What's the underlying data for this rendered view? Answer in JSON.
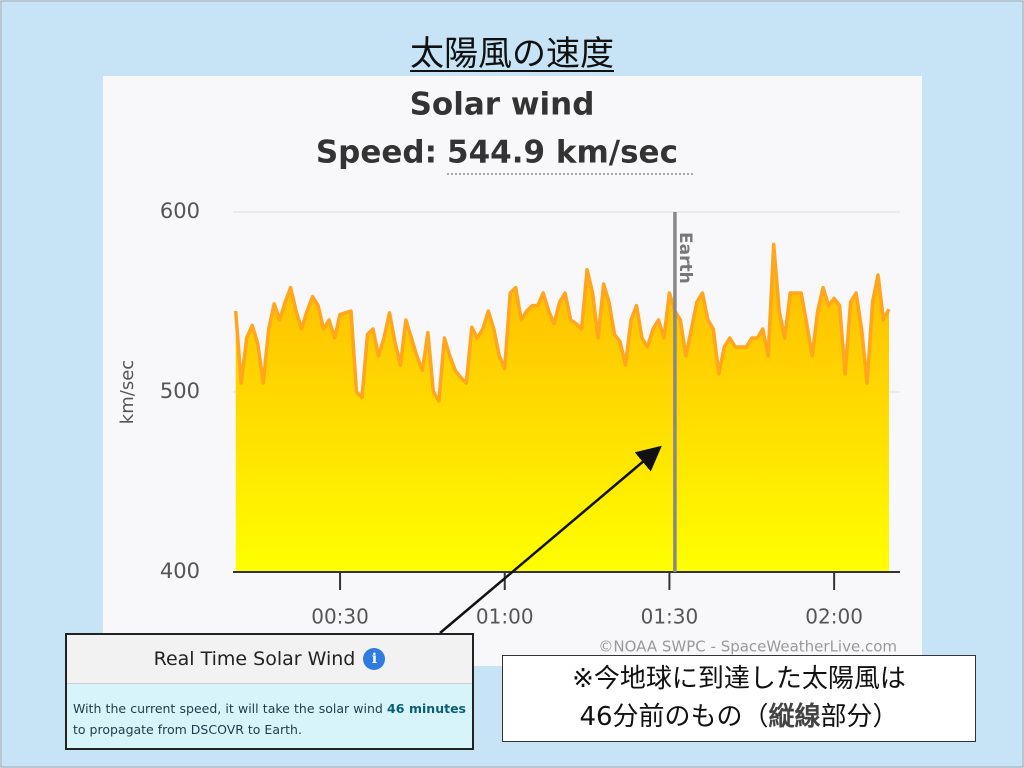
{
  "slide_title": "太陽風の速度",
  "chart_data": {
    "type": "area",
    "title": "Solar wind",
    "subtitle_label": "Speed:",
    "subtitle_value": "544.9 km/sec",
    "ylabel": "km/sec",
    "credit": "©NOAA SWPC - SpaceWeatherLive.com",
    "color": "#ffa51e",
    "fill_gradient": [
      "#ffb000",
      "#ffff00"
    ],
    "grid": true,
    "ylim": [
      400,
      600
    ],
    "yticks": [
      400,
      500,
      600
    ],
    "xlim": [
      10.5,
      132
    ],
    "xticks": [
      {
        "value": 30,
        "label": "00:30"
      },
      {
        "value": 60,
        "label": "01:00"
      },
      {
        "value": 90,
        "label": "01:30"
      },
      {
        "value": 120,
        "label": "02:00"
      }
    ],
    "earth": {
      "x": 91,
      "label": "Earth"
    },
    "x": [
      11,
      12,
      13,
      14,
      15,
      16,
      17,
      18,
      19,
      20,
      21,
      22,
      23,
      24,
      25,
      26,
      27,
      28,
      29,
      30,
      31,
      32,
      33,
      34,
      35,
      36,
      37,
      38,
      39,
      40,
      41,
      42,
      43,
      44,
      45,
      46,
      47,
      48,
      49,
      50,
      51,
      52,
      53,
      54,
      55,
      56,
      57,
      58,
      59,
      60,
      61,
      62,
      63,
      64,
      65,
      66,
      67,
      68,
      69,
      70,
      71,
      72,
      73,
      74,
      75,
      76,
      77,
      78,
      79,
      80,
      81,
      82,
      83,
      84,
      85,
      86,
      87,
      88,
      89,
      90,
      91,
      92,
      93,
      94,
      95,
      96,
      97,
      98,
      99,
      100,
      101,
      102,
      103,
      104,
      105,
      106,
      107,
      108,
      109,
      110,
      111,
      112,
      113,
      114,
      115,
      116,
      117,
      118,
      119,
      120,
      121,
      122,
      123,
      124,
      125,
      126,
      127,
      128,
      129,
      130
    ],
    "values": [
      545,
      505,
      530,
      537,
      527,
      505,
      535,
      549,
      540,
      550,
      558,
      545,
      535,
      545,
      553,
      548,
      535,
      540,
      530,
      543,
      544,
      545,
      500,
      497,
      532,
      535,
      520,
      530,
      544,
      528,
      515,
      540,
      530,
      520,
      512,
      533,
      500,
      495,
      530,
      520,
      512,
      508,
      505,
      536,
      530,
      535,
      545,
      535,
      520,
      513,
      555,
      558,
      540,
      545,
      548,
      548,
      555,
      545,
      538,
      550,
      555,
      540,
      538,
      535,
      568,
      555,
      530,
      560,
      550,
      532,
      528,
      515,
      540,
      548,
      530,
      525,
      535,
      540,
      530,
      555,
      545,
      540,
      520,
      535,
      550,
      555,
      540,
      535,
      510,
      525,
      530,
      525,
      525,
      525,
      530,
      530,
      535,
      520,
      582,
      545,
      530,
      555,
      555,
      555,
      538,
      520,
      545,
      558,
      548,
      552,
      548,
      510,
      550,
      555,
      535,
      505,
      550,
      565,
      540,
      546
    ]
  },
  "card": {
    "title": "Real Time Solar Wind",
    "icon": "i",
    "body_start": "With the current speed, it will take the solar wind ",
    "body_bold": "46 minutes",
    "body_end": " to propagate from DSCOVR to Earth."
  },
  "note": {
    "line1": "※今地球に到達した太陽風は",
    "line2_start": "46分前のもの（",
    "line2_bold": "縦線",
    "line2_end": "部分）"
  }
}
